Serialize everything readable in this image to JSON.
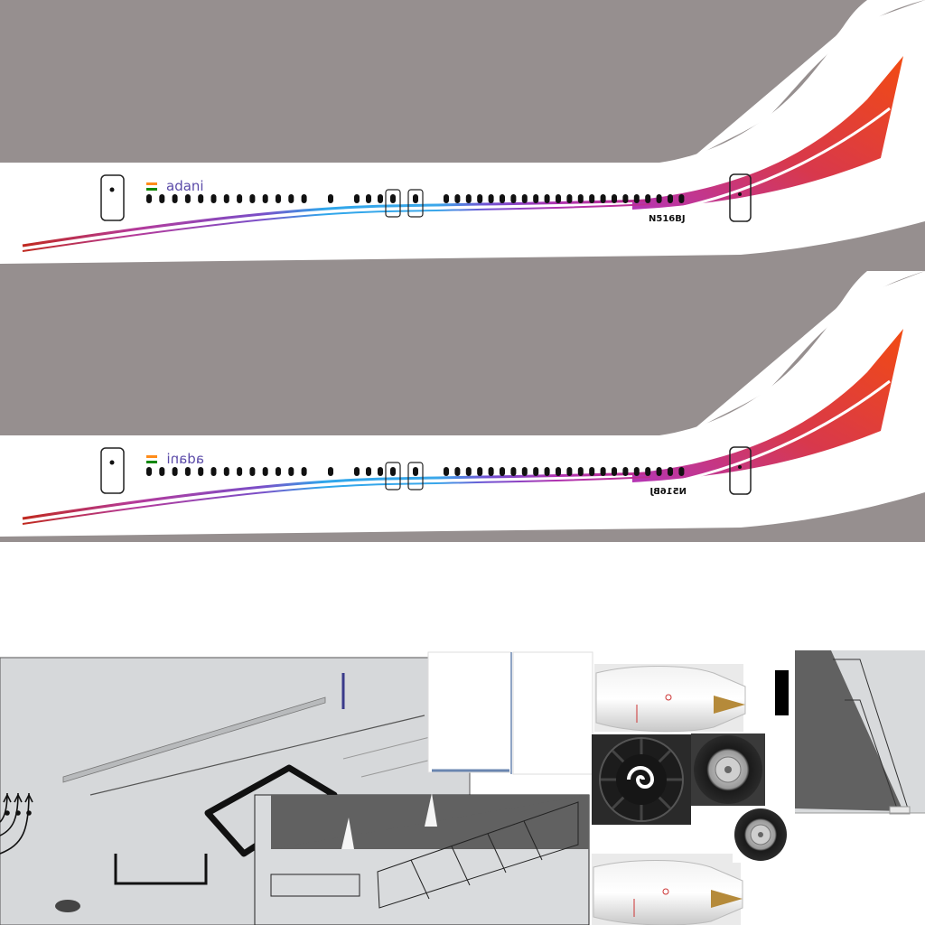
{
  "livery": {
    "logo_text": "adani",
    "logo_text_mirrored": "adani",
    "registration": "N516BJ",
    "registration_mirrored": "N516BJ"
  },
  "colors": {
    "background_gray": "#968f8f",
    "fuselage_white": "#ffffff",
    "tail_red": "#e8381c",
    "stripe_purple": "#a030b0",
    "stripe_blue": "#2a9fe0",
    "cheatline_red": "#c0291e",
    "panel_gray": "#d6d8da",
    "window_black": "#111111",
    "logo_purple": "#5a4aa8",
    "flag_orange": "#ff8c1a",
    "flag_green": "#138808"
  },
  "icons": {
    "flag": "india-flag-icon",
    "engine": "engine-nacelle-icon",
    "fan": "engine-fan-spinner-icon",
    "wheel": "landing-gear-wheel-icon"
  }
}
